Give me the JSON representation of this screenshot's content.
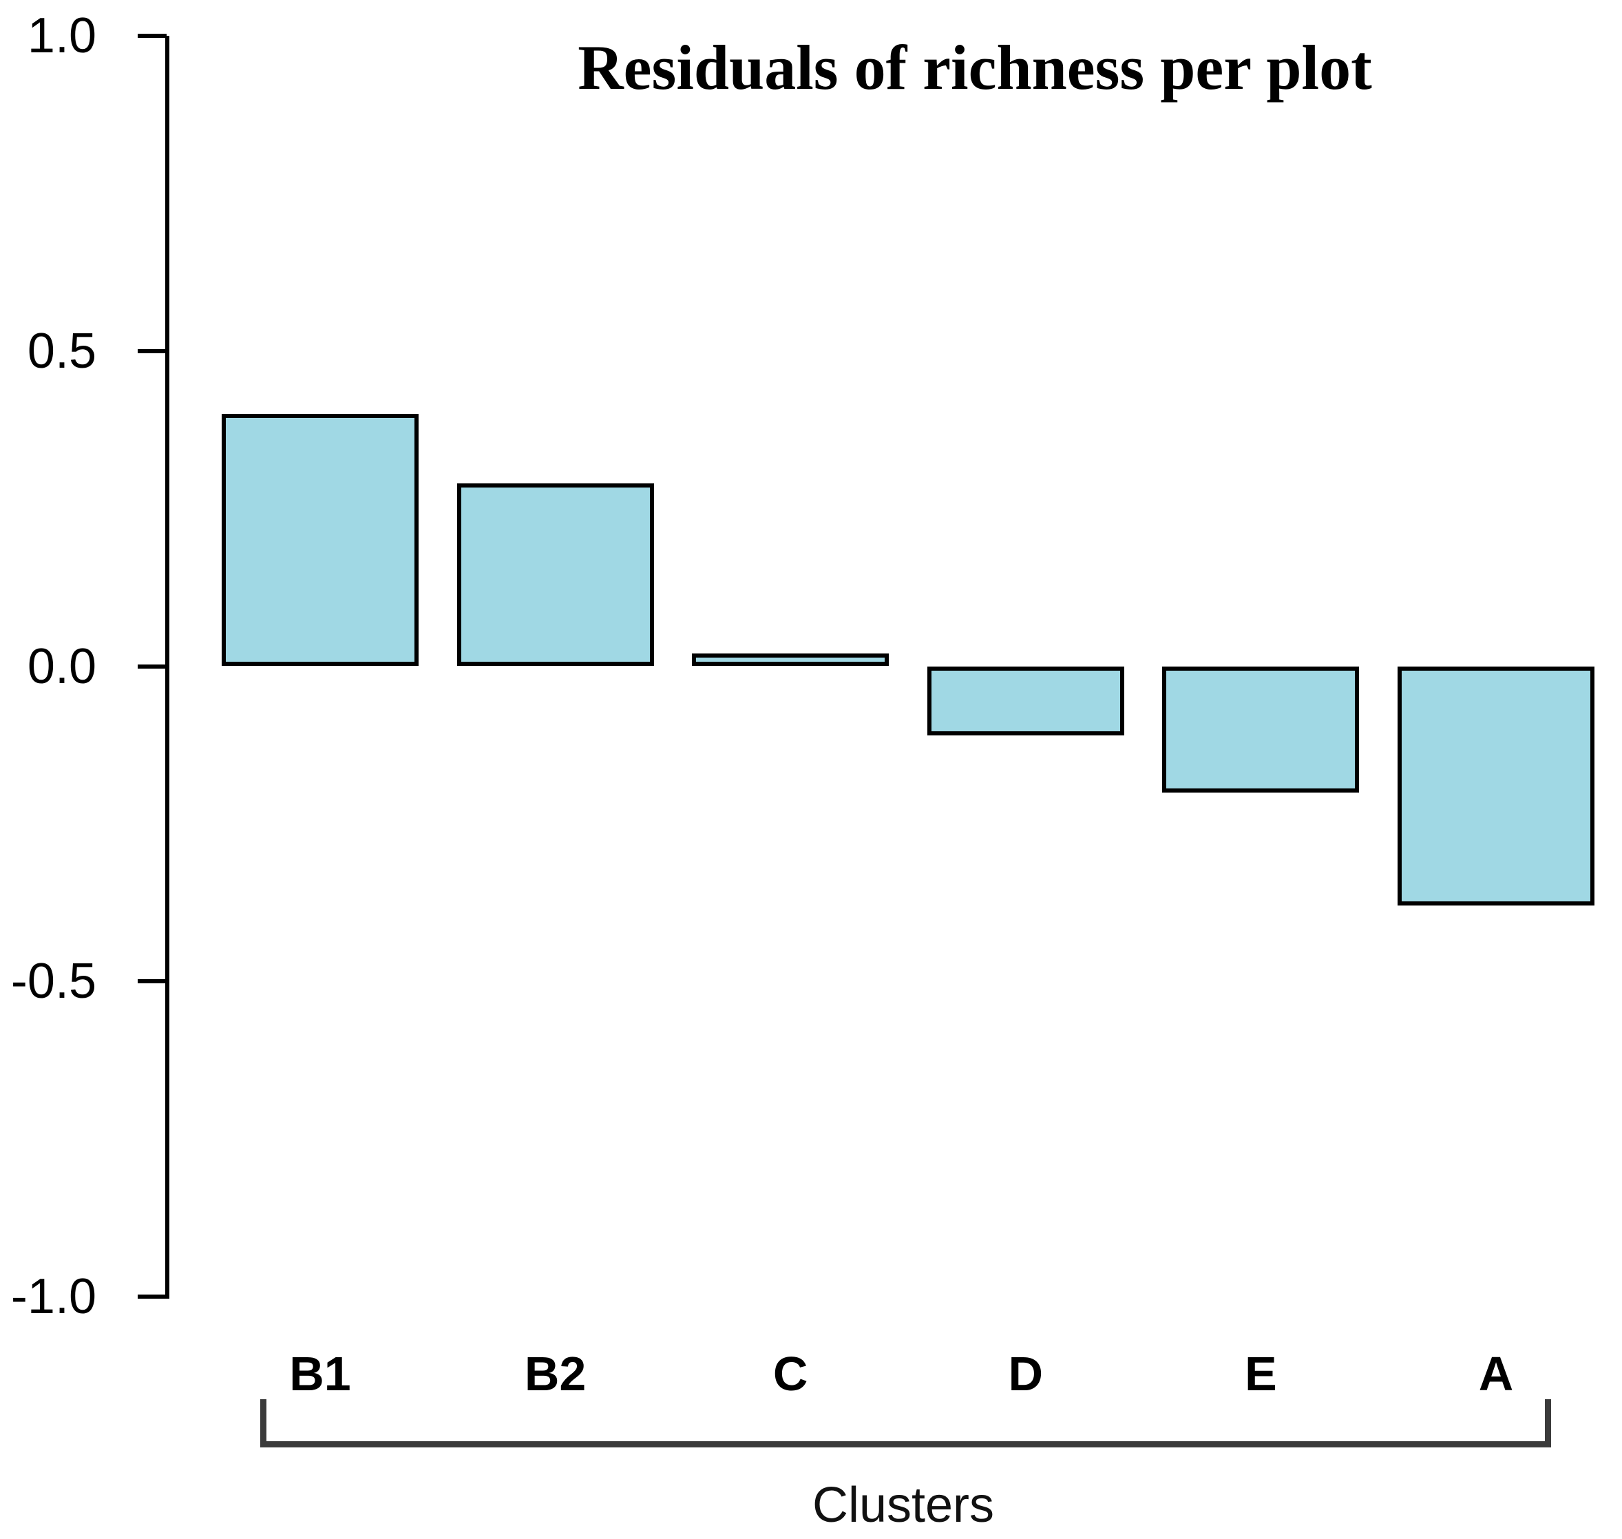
{
  "title": "Residuals of richness per plot",
  "chart_data": {
    "type": "bar",
    "categories": [
      "B1",
      "B2",
      "C",
      "D",
      "E",
      "A"
    ],
    "values": [
      0.4,
      0.29,
      0.02,
      -0.11,
      -0.2,
      -0.38
    ],
    "title": "Residuals of richness per plot",
    "xlabel": "Clusters",
    "ylabel": "",
    "ylim": [
      -1.0,
      1.0
    ],
    "yticks": [
      1.0,
      0.5,
      0.0,
      -0.5,
      -1.0
    ],
    "ytick_labels": [
      "1.0",
      "0.5",
      "0.0",
      "-0.5",
      "-1.0"
    ],
    "grid": false,
    "legend": null,
    "colors": {
      "bar_fill": "#a0d8e4",
      "bar_border": "#000000",
      "axis": "#000000",
      "bracket": "#3b3b3b",
      "text": "#000000"
    }
  }
}
